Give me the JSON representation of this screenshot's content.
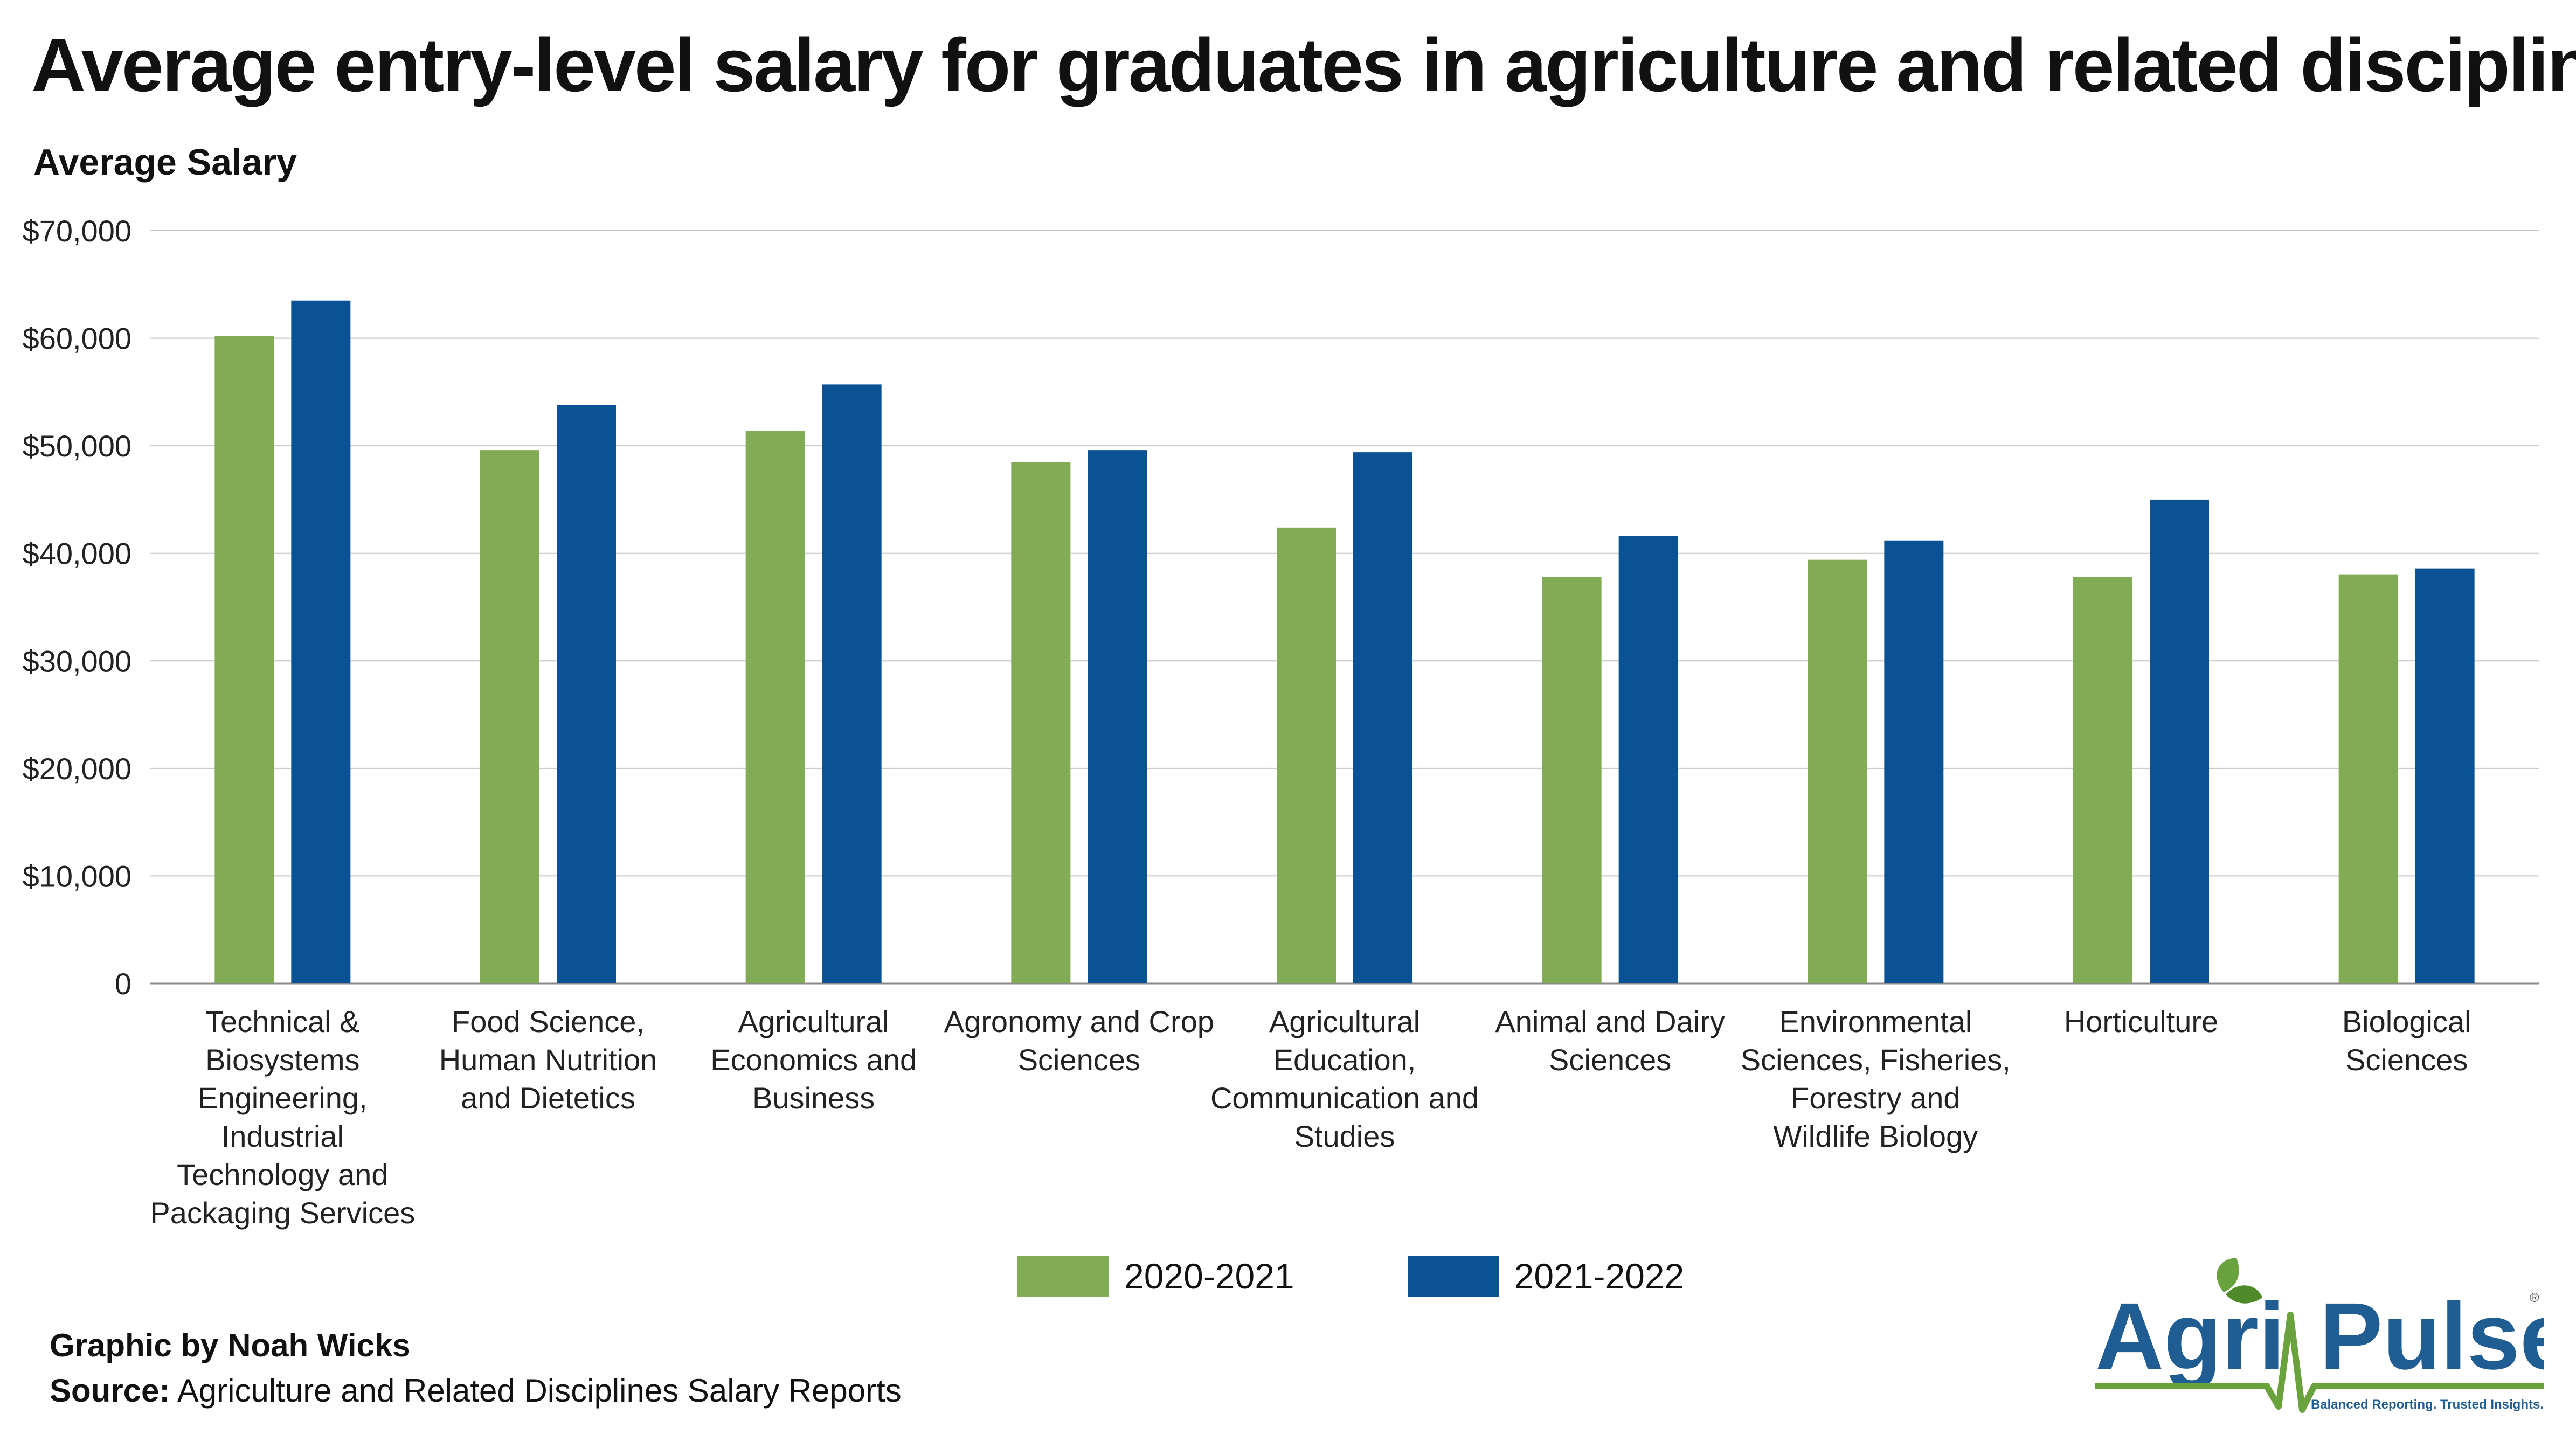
{
  "title": "Average entry-level salary for graduates in agriculture and related disciplines",
  "colors": {
    "series1": "#82ab55",
    "series2": "#0a5294",
    "grid": "#c4c4c4",
    "axis": "#8a8a8a",
    "logo_blue": "#1f5d93",
    "logo_green": "#6aa33d"
  },
  "chart_data": {
    "type": "bar",
    "ylabel": "Average Salary",
    "xlabel": "",
    "ylim": [
      0,
      70000
    ],
    "yticks": [
      0,
      10000,
      20000,
      30000,
      40000,
      50000,
      60000,
      70000
    ],
    "ytick_labels": [
      "0",
      "$10,000",
      "$20,000",
      "$30,000",
      "$40,000",
      "$50,000",
      "$60,000",
      "$70,000"
    ],
    "grid": true,
    "legend_position": "bottom",
    "categories": [
      [
        "Technical &",
        "Biosystems",
        "Engineering,",
        "Industrial",
        "Technology and",
        "Packaging Services"
      ],
      [
        "Food Science,",
        "Human Nutrition",
        "and Dietetics"
      ],
      [
        "Agricultural",
        "Economics and",
        "Business"
      ],
      [
        "Agronomy and Crop",
        "Sciences"
      ],
      [
        "Agricultural",
        "Education,",
        "Communication and",
        "Studies"
      ],
      [
        "Animal and Dairy",
        "Sciences"
      ],
      [
        "Environmental",
        "Sciences, Fisheries,",
        "Forestry and",
        "Wildlife Biology"
      ],
      [
        "Horticulture"
      ],
      [
        "Biological",
        "Sciences"
      ]
    ],
    "series": [
      {
        "name": "2020-2021",
        "values": [
          60200,
          49600,
          51400,
          48500,
          42400,
          37800,
          39400,
          37800,
          38000
        ]
      },
      {
        "name": "2021-2022",
        "values": [
          63500,
          53800,
          55700,
          49600,
          49400,
          41600,
          41200,
          45000,
          38600
        ]
      }
    ]
  },
  "footer": {
    "credit": "Graphic by Noah Wicks",
    "source_label": "Source:",
    "source_text": "Agriculture and Related Disciplines Salary Reports"
  },
  "logo": {
    "word1": "Agri",
    "word2": "Pulse",
    "registered": "®",
    "tagline": "Balanced Reporting. Trusted Insights."
  }
}
